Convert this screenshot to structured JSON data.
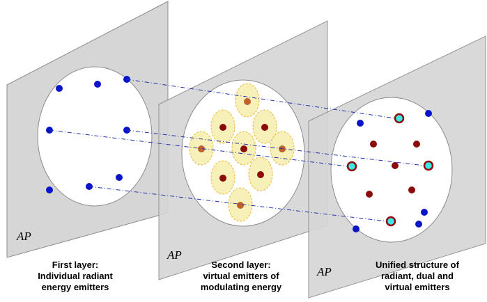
{
  "layers": [
    {
      "ap_label": "AP",
      "caption_lines": [
        "First layer:",
        "Individual radiant",
        "energy emitters"
      ]
    },
    {
      "ap_label": "AP",
      "caption_lines": [
        "Second layer:",
        "virtual emitters of",
        "modulating energy"
      ]
    },
    {
      "ap_label": "AP",
      "caption_lines": [
        "Unified structure of",
        "radiant, dual and",
        "virtual emitters"
      ]
    }
  ],
  "colors": {
    "panel_fill": "#d6d6d6",
    "panel_stroke": "#8c8c8c",
    "ellipse_fill": "#ffffff",
    "radiant_emitter": "#0a14c8",
    "virtual_emitter": "#8b0a0a",
    "modulating_core": "#c0602a",
    "halo_fill": "#f7f0b8",
    "halo_stroke": "#e8b83a",
    "dual_fill": "#3ee6e6",
    "dual_ring": "#8b0a0a",
    "connector": "#2233aa"
  }
}
